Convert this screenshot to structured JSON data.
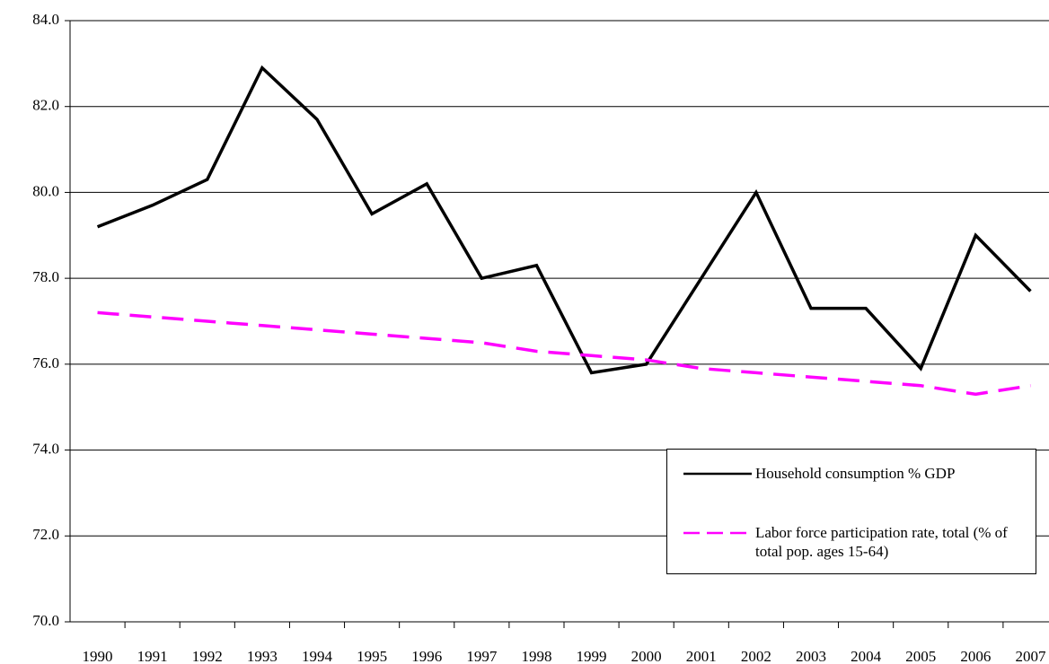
{
  "chart_data": {
    "type": "line",
    "categories": [
      "1990",
      "1991",
      "1992",
      "1993",
      "1994",
      "1995",
      "1996",
      "1997",
      "1998",
      "1999",
      "2000",
      "2001",
      "2002",
      "2003",
      "2004",
      "2005",
      "2006",
      "2007"
    ],
    "series": [
      {
        "name": "Household consumption % GDP",
        "color": "#000000",
        "dash": false,
        "values": [
          79.2,
          79.7,
          80.3,
          82.9,
          81.7,
          79.5,
          80.2,
          78.0,
          78.3,
          75.8,
          76.0,
          78.0,
          80.0,
          77.3,
          77.3,
          75.9,
          79.0,
          77.7
        ]
      },
      {
        "name": "Labor force participation rate, total (% of total pop. ages 15-64)",
        "color": "#ff00ff",
        "dash": true,
        "values": [
          77.2,
          77.1,
          77.0,
          76.9,
          76.8,
          76.7,
          76.6,
          76.5,
          76.3,
          76.2,
          76.1,
          75.9,
          75.8,
          75.7,
          75.6,
          75.5,
          75.3,
          75.5
        ]
      }
    ],
    "ylim": [
      70,
      84
    ],
    "yticks": [
      {
        "value": 70,
        "label": "70.0"
      },
      {
        "value": 72,
        "label": "72.0"
      },
      {
        "value": 74,
        "label": "74.0"
      },
      {
        "value": 76,
        "label": "76.0"
      },
      {
        "value": 78,
        "label": "78.0"
      },
      {
        "value": 80,
        "label": "80.0"
      },
      {
        "value": 82,
        "label": "82.0"
      },
      {
        "value": 84,
        "label": "84.0"
      }
    ],
    "grid": true
  }
}
